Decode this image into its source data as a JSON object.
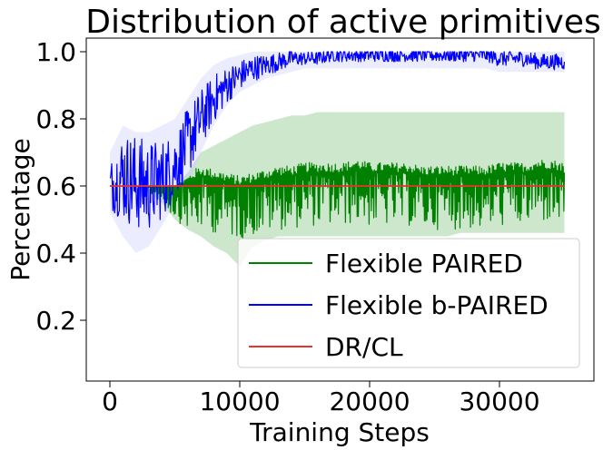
{
  "chart_data": {
    "type": "line",
    "title": "Distribution of active primitives",
    "xlabel": "Training Steps",
    "ylabel": "Percentage",
    "xlim": [
      -2000,
      37000
    ],
    "ylim": [
      0.02,
      1.05
    ],
    "xticks": [
      0,
      10000,
      20000,
      30000
    ],
    "xtick_labels": [
      "0",
      "10000",
      "20000",
      "30000"
    ],
    "yticks": [
      0.2,
      0.4,
      0.6,
      0.8,
      1.0
    ],
    "ytick_labels": [
      "0.2",
      "0.4",
      "0.6",
      "0.8",
      "1.0"
    ],
    "grid": false,
    "legend_position": "lower-right",
    "series": [
      {
        "name": "Flexible PAIRED",
        "color": "#008000",
        "band_color": "#8fc98f",
        "x": [
          0,
          1000,
          2000,
          3000,
          4000,
          5000,
          6000,
          7000,
          8000,
          9000,
          10000,
          11000,
          12000,
          13000,
          14000,
          15000,
          16000,
          17000,
          18000,
          19000,
          20000,
          21000,
          22000,
          23000,
          24000,
          25000,
          26000,
          27000,
          28000,
          29000,
          30000,
          31000,
          32000,
          33000,
          34000,
          35000
        ],
        "y": [
          0.6,
          0.6,
          0.6,
          0.6,
          0.6,
          0.6,
          0.61,
          0.63,
          0.62,
          0.61,
          0.6,
          0.61,
          0.62,
          0.63,
          0.63,
          0.64,
          0.64,
          0.64,
          0.64,
          0.65,
          0.64,
          0.64,
          0.64,
          0.64,
          0.63,
          0.63,
          0.63,
          0.63,
          0.63,
          0.63,
          0.64,
          0.64,
          0.64,
          0.65,
          0.65,
          0.64
        ],
        "lower": [
          0.6,
          0.6,
          0.6,
          0.58,
          0.55,
          0.5,
          0.47,
          0.45,
          0.42,
          0.4,
          0.36,
          0.42,
          0.44,
          0.45,
          0.45,
          0.45,
          0.45,
          0.45,
          0.45,
          0.45,
          0.45,
          0.45,
          0.45,
          0.45,
          0.45,
          0.45,
          0.45,
          0.46,
          0.46,
          0.46,
          0.46,
          0.46,
          0.46,
          0.46,
          0.46,
          0.46
        ],
        "upper": [
          0.6,
          0.6,
          0.6,
          0.6,
          0.6,
          0.6,
          0.64,
          0.7,
          0.72,
          0.74,
          0.76,
          0.78,
          0.79,
          0.8,
          0.81,
          0.81,
          0.82,
          0.82,
          0.82,
          0.82,
          0.82,
          0.82,
          0.82,
          0.82,
          0.82,
          0.82,
          0.82,
          0.82,
          0.82,
          0.82,
          0.82,
          0.82,
          0.82,
          0.82,
          0.82,
          0.82
        ]
      },
      {
        "name": "Flexible b-PAIRED",
        "color": "#0000ff",
        "band_color": "#c8c8ff",
        "x": [
          0,
          1000,
          2000,
          3000,
          4000,
          5000,
          6000,
          7000,
          8000,
          9000,
          10000,
          11000,
          12000,
          13000,
          14000,
          15000,
          16000,
          17000,
          18000,
          19000,
          20000,
          21000,
          22000,
          23000,
          24000,
          25000,
          26000,
          27000,
          28000,
          29000,
          30000,
          31000,
          32000,
          33000,
          34000,
          35000
        ],
        "y": [
          0.6,
          0.63,
          0.61,
          0.6,
          0.62,
          0.66,
          0.73,
          0.8,
          0.86,
          0.9,
          0.93,
          0.95,
          0.96,
          0.97,
          0.98,
          0.98,
          0.98,
          0.99,
          0.99,
          0.99,
          0.99,
          0.99,
          0.99,
          0.99,
          0.99,
          0.99,
          0.99,
          0.99,
          0.99,
          0.99,
          0.98,
          0.98,
          0.98,
          0.97,
          0.97,
          0.97
        ],
        "lower": [
          0.52,
          0.45,
          0.4,
          0.42,
          0.48,
          0.55,
          0.6,
          0.7,
          0.78,
          0.84,
          0.88,
          0.9,
          0.92,
          0.93,
          0.94,
          0.95,
          0.95,
          0.95,
          0.95,
          0.95,
          0.95,
          0.95,
          0.95,
          0.95,
          0.95,
          0.95,
          0.95,
          0.95,
          0.95,
          0.95,
          0.94,
          0.94,
          0.94,
          0.94,
          0.94,
          0.94
        ],
        "upper": [
          0.7,
          0.78,
          0.76,
          0.76,
          0.78,
          0.8,
          0.86,
          0.92,
          0.96,
          0.98,
          0.99,
          1.0,
          1.0,
          1.0,
          1.0,
          1.0,
          1.0,
          1.0,
          1.0,
          1.0,
          1.0,
          1.0,
          1.0,
          1.0,
          1.0,
          1.0,
          1.0,
          1.0,
          1.0,
          1.0,
          1.0,
          1.0,
          1.0,
          1.0,
          1.0,
          1.0
        ]
      },
      {
        "name": "DR/CL",
        "color": "#e8322c",
        "x": [
          0,
          35000
        ],
        "y": [
          0.6,
          0.6
        ]
      }
    ]
  }
}
